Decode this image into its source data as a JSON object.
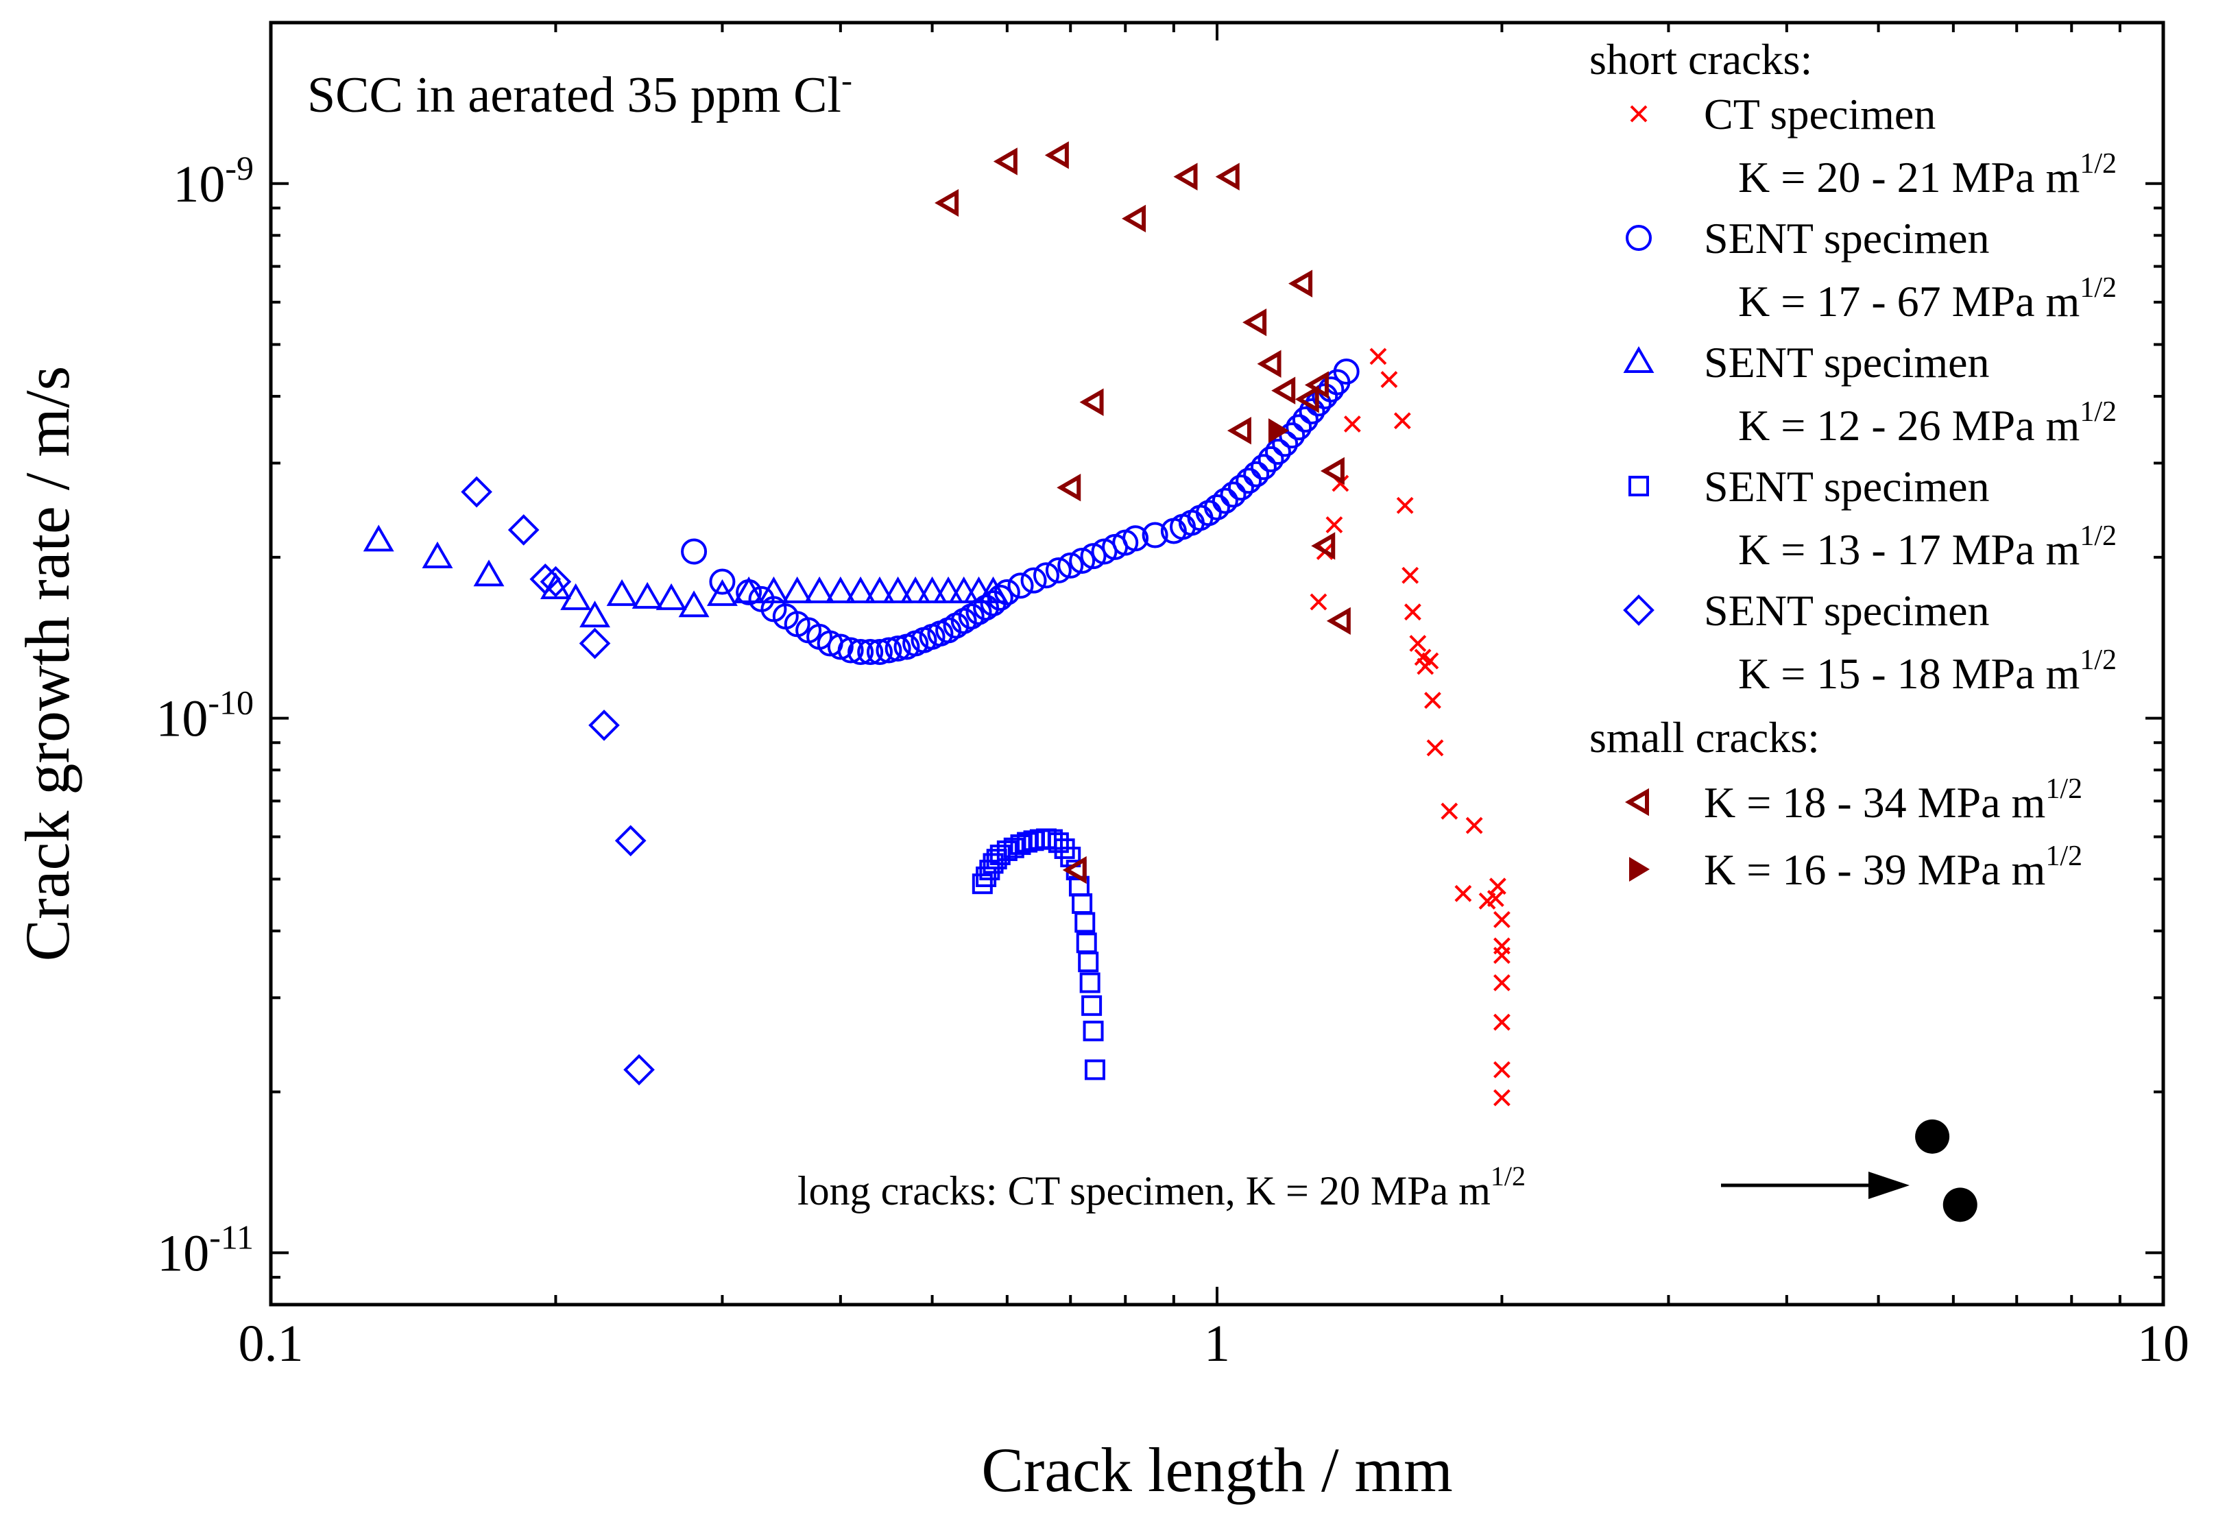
{
  "chart_data": {
    "type": "scatter",
    "title": "",
    "annotation_top": {
      "main": "SCC in aerated 35 ppm Cl",
      "sup": "-"
    },
    "xlabel": "Crack length / mm",
    "ylabel": "Crack growth rate / m/s",
    "xscale": "log",
    "yscale": "log",
    "xlim": [
      0.1,
      10
    ],
    "ylim": [
      8e-12,
      2e-09
    ],
    "grid": false,
    "legend_position": "top-right",
    "x_ticks": [
      {
        "value": 0.1,
        "label": "0.1"
      },
      {
        "value": 1,
        "label": "1"
      },
      {
        "value": 10,
        "label": "10"
      }
    ],
    "y_ticks": [
      {
        "value": 1e-11,
        "base": "10",
        "exp": "-11"
      },
      {
        "value": 1e-10,
        "base": "10",
        "exp": "-10"
      },
      {
        "value": 1e-09,
        "base": "10",
        "exp": "-9"
      }
    ],
    "legend": {
      "header_short": "short cracks:",
      "header_small": "small cracks:",
      "entries": [
        {
          "series": "ct_x",
          "name": "CT specimen",
          "k_text": "K = 20 - 21 MPa m",
          "k_sup": "1/2"
        },
        {
          "series": "sent_circle",
          "name": "SENT specimen",
          "k_text": "K = 17 - 67 MPa m",
          "k_sup": "1/2"
        },
        {
          "series": "sent_triangle",
          "name": "SENT specimen",
          "k_text": "K = 12 - 26 MPa m",
          "k_sup": "1/2"
        },
        {
          "series": "sent_square",
          "name": "SENT specimen",
          "k_text": "K = 13 - 17 MPa m",
          "k_sup": "1/2"
        },
        {
          "series": "sent_diamond",
          "name": "SENT specimen",
          "k_text": "K = 15 - 18 MPa m",
          "k_sup": "1/2"
        },
        {
          "series": "small_open",
          "name": "K = 18 - 34 MPa m",
          "sup": "1/2"
        },
        {
          "series": "small_filled",
          "name": "K = 16 - 39 MPa m",
          "sup": "1/2"
        }
      ]
    },
    "long_cracks_note": {
      "text": "long cracks: CT specimen, K = 20 MPa m",
      "sup": "1/2"
    },
    "series": [
      {
        "id": "ct_x",
        "marker": "x",
        "color": "#ff0000",
        "points": [
          [
            1.28,
            1.65e-10
          ],
          [
            1.3,
            2.05e-10
          ],
          [
            1.33,
            2.3e-10
          ],
          [
            1.35,
            2.75e-10
          ],
          [
            1.39,
            3.55e-10
          ],
          [
            1.48,
            4.75e-10
          ],
          [
            1.52,
            4.3e-10
          ],
          [
            1.57,
            3.6e-10
          ],
          [
            1.58,
            2.5e-10
          ],
          [
            1.6,
            1.85e-10
          ],
          [
            1.61,
            1.58e-10
          ],
          [
            1.63,
            1.38e-10
          ],
          [
            1.65,
            1.3e-10
          ],
          [
            1.66,
            1.25e-10
          ],
          [
            1.68,
            1.28e-10
          ],
          [
            1.69,
            1.08e-10
          ],
          [
            1.7,
            8.8e-11
          ],
          [
            1.76,
            6.7e-11
          ],
          [
            1.82,
            4.7e-11
          ],
          [
            1.87,
            6.3e-11
          ],
          [
            1.93,
            4.55e-11
          ],
          [
            1.97,
            4.6e-11
          ],
          [
            1.98,
            4.85e-11
          ],
          [
            2.0,
            4.2e-11
          ],
          [
            2.0,
            3.75e-11
          ],
          [
            2.0,
            3.6e-11
          ],
          [
            2.0,
            3.2e-11
          ],
          [
            2.0,
            2.7e-11
          ],
          [
            2.0,
            2.2e-11
          ],
          [
            2.0,
            1.95e-11
          ]
        ]
      },
      {
        "id": "sent_circle",
        "marker": "circle",
        "color": "#0000ff",
        "points": [
          [
            0.28,
            2.05e-10
          ],
          [
            0.3,
            1.8e-10
          ],
          [
            0.32,
            1.72e-10
          ],
          [
            0.33,
            1.67e-10
          ],
          [
            0.34,
            1.6e-10
          ],
          [
            0.35,
            1.55e-10
          ],
          [
            0.36,
            1.5e-10
          ],
          [
            0.37,
            1.46e-10
          ],
          [
            0.38,
            1.42e-10
          ],
          [
            0.39,
            1.38e-10
          ],
          [
            0.4,
            1.36e-10
          ],
          [
            0.41,
            1.34e-10
          ],
          [
            0.42,
            1.33e-10
          ],
          [
            0.43,
            1.33e-10
          ],
          [
            0.44,
            1.33e-10
          ],
          [
            0.45,
            1.34e-10
          ],
          [
            0.46,
            1.35e-10
          ],
          [
            0.47,
            1.36e-10
          ],
          [
            0.48,
            1.38e-10
          ],
          [
            0.49,
            1.4e-10
          ],
          [
            0.5,
            1.42e-10
          ],
          [
            0.51,
            1.44e-10
          ],
          [
            0.52,
            1.46e-10
          ],
          [
            0.53,
            1.49e-10
          ],
          [
            0.54,
            1.52e-10
          ],
          [
            0.55,
            1.55e-10
          ],
          [
            0.56,
            1.58e-10
          ],
          [
            0.57,
            1.61e-10
          ],
          [
            0.58,
            1.64e-10
          ],
          [
            0.59,
            1.68e-10
          ],
          [
            0.6,
            1.72e-10
          ],
          [
            0.62,
            1.77e-10
          ],
          [
            0.64,
            1.81e-10
          ],
          [
            0.66,
            1.85e-10
          ],
          [
            0.68,
            1.89e-10
          ],
          [
            0.7,
            1.93e-10
          ],
          [
            0.72,
            1.97e-10
          ],
          [
            0.74,
            2.01e-10
          ],
          [
            0.76,
            2.05e-10
          ],
          [
            0.78,
            2.09e-10
          ],
          [
            0.8,
            2.13e-10
          ],
          [
            0.82,
            2.17e-10
          ],
          [
            0.86,
            2.2e-10
          ],
          [
            0.9,
            2.24e-10
          ],
          [
            0.92,
            2.28e-10
          ],
          [
            0.94,
            2.32e-10
          ],
          [
            0.96,
            2.37e-10
          ],
          [
            0.98,
            2.42e-10
          ],
          [
            1.0,
            2.48e-10
          ],
          [
            1.02,
            2.55e-10
          ],
          [
            1.04,
            2.62e-10
          ],
          [
            1.06,
            2.7e-10
          ],
          [
            1.08,
            2.78e-10
          ],
          [
            1.1,
            2.86e-10
          ],
          [
            1.12,
            2.95e-10
          ],
          [
            1.14,
            3.05e-10
          ],
          [
            1.16,
            3.15e-10
          ],
          [
            1.18,
            3.26e-10
          ],
          [
            1.2,
            3.38e-10
          ],
          [
            1.22,
            3.5e-10
          ],
          [
            1.24,
            3.62e-10
          ],
          [
            1.26,
            3.75e-10
          ],
          [
            1.28,
            3.88e-10
          ],
          [
            1.3,
            4e-10
          ],
          [
            1.32,
            4.12e-10
          ],
          [
            1.34,
            4.25e-10
          ],
          [
            1.37,
            4.45e-10
          ]
        ]
      },
      {
        "id": "sent_triangle",
        "marker": "triangle",
        "color": "#0000ff",
        "points": [
          [
            0.13,
            2.15e-10
          ],
          [
            0.15,
            2e-10
          ],
          [
            0.17,
            1.85e-10
          ],
          [
            0.2,
            1.75e-10
          ],
          [
            0.21,
            1.67e-10
          ],
          [
            0.22,
            1.55e-10
          ],
          [
            0.235,
            1.7e-10
          ],
          [
            0.25,
            1.68e-10
          ],
          [
            0.265,
            1.67e-10
          ],
          [
            0.28,
            1.62e-10
          ],
          [
            0.3,
            1.7e-10
          ],
          [
            0.32,
            1.72e-10
          ],
          [
            0.34,
            1.72e-10
          ],
          [
            0.36,
            1.72e-10
          ],
          [
            0.38,
            1.72e-10
          ],
          [
            0.4,
            1.72e-10
          ],
          [
            0.42,
            1.72e-10
          ],
          [
            0.44,
            1.72e-10
          ],
          [
            0.46,
            1.72e-10
          ],
          [
            0.48,
            1.72e-10
          ],
          [
            0.5,
            1.72e-10
          ],
          [
            0.52,
            1.72e-10
          ],
          [
            0.54,
            1.72e-10
          ],
          [
            0.56,
            1.72e-10
          ],
          [
            0.58,
            1.72e-10
          ]
        ]
      },
      {
        "id": "sent_square",
        "marker": "square",
        "color": "#0000ff",
        "points": [
          [
            0.565,
            4.9e-11
          ],
          [
            0.57,
            5.05e-11
          ],
          [
            0.575,
            5.2e-11
          ],
          [
            0.58,
            5.35e-11
          ],
          [
            0.585,
            5.45e-11
          ],
          [
            0.59,
            5.55e-11
          ],
          [
            0.6,
            5.65e-11
          ],
          [
            0.61,
            5.72e-11
          ],
          [
            0.62,
            5.8e-11
          ],
          [
            0.63,
            5.86e-11
          ],
          [
            0.64,
            5.9e-11
          ],
          [
            0.65,
            5.93e-11
          ],
          [
            0.66,
            5.95e-11
          ],
          [
            0.67,
            5.93e-11
          ],
          [
            0.68,
            5.85e-11
          ],
          [
            0.69,
            5.7e-11
          ],
          [
            0.7,
            5.5e-11
          ],
          [
            0.71,
            5.2e-11
          ],
          [
            0.715,
            4.85e-11
          ],
          [
            0.72,
            4.5e-11
          ],
          [
            0.725,
            4.15e-11
          ],
          [
            0.728,
            3.8e-11
          ],
          [
            0.731,
            3.5e-11
          ],
          [
            0.734,
            3.2e-11
          ],
          [
            0.737,
            2.9e-11
          ],
          [
            0.74,
            2.6e-11
          ],
          [
            0.743,
            2.2e-11
          ]
        ]
      },
      {
        "id": "sent_diamond",
        "marker": "diamond",
        "color": "#0000ff",
        "points": [
          [
            0.165,
            2.65e-10
          ],
          [
            0.185,
            2.25e-10
          ],
          [
            0.195,
            1.82e-10
          ],
          [
            0.2,
            1.8e-10
          ],
          [
            0.22,
            1.38e-10
          ],
          [
            0.225,
            9.7e-11
          ],
          [
            0.24,
            5.9e-11
          ],
          [
            0.245,
            2.2e-11
          ]
        ]
      },
      {
        "id": "small_open",
        "marker": "triangle-left-open",
        "color": "#8b0000",
        "points": [
          [
            0.52,
            9.2e-10
          ],
          [
            0.6,
            1.1e-09
          ],
          [
            0.68,
            1.13e-09
          ],
          [
            0.82,
            8.6e-10
          ],
          [
            0.93,
            1.03e-09
          ],
          [
            1.03,
            1.03e-09
          ],
          [
            0.7,
            2.7e-10
          ],
          [
            0.74,
            3.9e-10
          ],
          [
            1.06,
            3.45e-10
          ],
          [
            1.1,
            5.5e-10
          ],
          [
            1.14,
            4.6e-10
          ],
          [
            1.18,
            4.1e-10
          ],
          [
            1.23,
            6.5e-10
          ],
          [
            1.25,
            3.95e-10
          ],
          [
            1.28,
            4.2e-10
          ],
          [
            1.3,
            2.1e-10
          ],
          [
            1.33,
            2.9e-10
          ],
          [
            1.35,
            1.52e-10
          ],
          [
            0.71,
            5.2e-11
          ]
        ]
      },
      {
        "id": "small_filled",
        "marker": "triangle-right-filled",
        "color": "#8b0000",
        "points": [
          [
            1.16,
            3.45e-10
          ]
        ]
      },
      {
        "id": "long_cracks",
        "marker": "big-dot",
        "color": "#000000",
        "points": [
          [
            5.7,
            1.65e-11
          ],
          [
            6.1,
            1.23e-11
          ]
        ]
      }
    ]
  }
}
